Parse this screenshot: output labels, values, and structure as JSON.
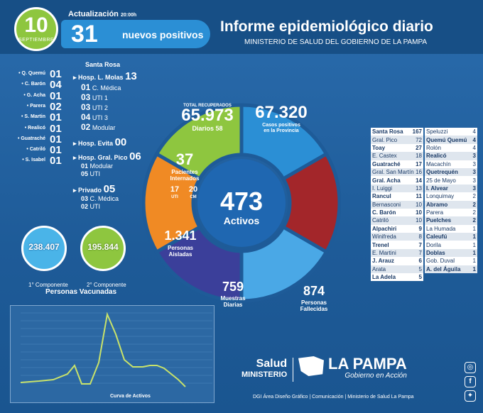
{
  "header": {
    "day": "10",
    "month": "SEPTIEMBRE",
    "update_label": "Actualización",
    "update_time": "20:00h",
    "new_positive_count": "31",
    "new_positive_label": "nuevos positivos",
    "title": "Informe epidemiológico diario",
    "subtitle": "MINISTERIO DE SALUD DEL GOBIERNO DE LA PAMPA"
  },
  "left_list": [
    {
      "name": "Q. Quemú",
      "value": "01"
    },
    {
      "name": "C. Barón",
      "value": "04"
    },
    {
      "name": "G. Acha",
      "value": "01"
    },
    {
      "name": "Parera",
      "value": "02"
    },
    {
      "name": "S. Martin",
      "value": "01"
    },
    {
      "name": "Realicó",
      "value": "01"
    },
    {
      "name": "Guatraché",
      "value": "01"
    },
    {
      "name": "Catriló",
      "value": "01"
    },
    {
      "name": "S. Isabel",
      "value": "01"
    }
  ],
  "hospitals": {
    "city": "Santa Rosa",
    "molas": {
      "label": "Hosp. L. Molas",
      "value": "13",
      "items": [
        {
          "n": "01",
          "t": "C. Médica"
        },
        {
          "n": "03",
          "t": "UTI 1"
        },
        {
          "n": "03",
          "t": "UTI 2"
        },
        {
          "n": "04",
          "t": "UTI 3"
        },
        {
          "n": "02",
          "t": "Modular"
        }
      ]
    },
    "evita": {
      "label": "Hosp. Evita",
      "value": "00"
    },
    "pico": {
      "label": "Hosp. Gral. Pico",
      "value": "06",
      "items": [
        {
          "n": "01",
          "t": "Modular"
        },
        {
          "n": "05",
          "t": "UTI"
        }
      ]
    },
    "privado": {
      "label": "Privado",
      "value": "05",
      "items": [
        {
          "n": "03",
          "t": "C. Médica"
        },
        {
          "n": "02",
          "t": "UTI"
        }
      ]
    }
  },
  "vaccines": {
    "first": "238.407",
    "first_label": "1° Componente",
    "second": "195.844",
    "second_label": "2° Componente",
    "caption": "Personas Vacunadas"
  },
  "wheel": {
    "recovered_label": "TOTAL RECUPERADOS",
    "recovered": "65.973",
    "recovered_daily_label": "Diarios",
    "recovered_daily": "58",
    "positives": "67.320",
    "positives_label": "Casos positivos en la Provincia",
    "hospitalized": "37",
    "hospitalized_label": "Pacientes Internados",
    "uti": "17",
    "uti_label": "UTI",
    "cm": "20",
    "cm_label": "CM",
    "active": "473",
    "active_label": "Activos",
    "isolated": "1.341",
    "isolated_label": "Personas Aisladas",
    "samples": "759",
    "samples_label": "Muestras Diarias",
    "deaths": "874",
    "deaths_label": "Personas Fallecidas",
    "colors": {
      "recovered": "#8ec63f",
      "positives": "#2b8fd5",
      "hospitalized": "#f08a24",
      "isolated": "#3b3f9a",
      "samples": "#4aa8e6",
      "deaths": "#a3262a",
      "center": "#1f67b1"
    }
  },
  "table_left": [
    {
      "name": "Santa Rosa",
      "value": "167",
      "bold": true
    },
    {
      "name": "Gral. Pico",
      "value": "72",
      "bold": false
    },
    {
      "name": "Toay",
      "value": "27",
      "bold": true
    },
    {
      "name": "E. Castex",
      "value": "18",
      "bold": false
    },
    {
      "name": "Guatraché",
      "value": "17",
      "bold": true
    },
    {
      "name": "Gral. San Martín",
      "value": "16",
      "bold": false
    },
    {
      "name": "Gral. Acha",
      "value": "14",
      "bold": true
    },
    {
      "name": "I. Luiggi",
      "value": "13",
      "bold": false
    },
    {
      "name": "Rancul",
      "value": "11",
      "bold": true
    },
    {
      "name": "Bernasconi",
      "value": "10",
      "bold": false
    },
    {
      "name": "C. Barón",
      "value": "10",
      "bold": true
    },
    {
      "name": "Catriló",
      "value": "10",
      "bold": false
    },
    {
      "name": "Alpachiri",
      "value": "9",
      "bold": true
    },
    {
      "name": "Winifreda",
      "value": "8",
      "bold": false
    },
    {
      "name": "Trenel",
      "value": "7",
      "bold": true
    },
    {
      "name": "E. Martini",
      "value": "7",
      "bold": false
    },
    {
      "name": "J. Arauz",
      "value": "6",
      "bold": true
    },
    {
      "name": "Arata",
      "value": "5",
      "bold": false
    },
    {
      "name": "La Adela",
      "value": "5",
      "bold": true
    }
  ],
  "table_right": [
    {
      "name": "Speluzzi",
      "value": "4",
      "bold": false
    },
    {
      "name": "Quemú Quemú",
      "value": "4",
      "bold": true
    },
    {
      "name": "Rolón",
      "value": "4",
      "bold": false
    },
    {
      "name": "Realicó",
      "value": "3",
      "bold": true
    },
    {
      "name": "Macachín",
      "value": "3",
      "bold": false
    },
    {
      "name": "Quetrequén",
      "value": "3",
      "bold": true
    },
    {
      "name": "25 de Mayo",
      "value": "3",
      "bold": false
    },
    {
      "name": "I. Alvear",
      "value": "3",
      "bold": true
    },
    {
      "name": "Lonquimay",
      "value": "2",
      "bold": false
    },
    {
      "name": "Abramo",
      "value": "2",
      "bold": true
    },
    {
      "name": "Parera",
      "value": "2",
      "bold": false
    },
    {
      "name": "Puelches",
      "value": "2",
      "bold": true
    },
    {
      "name": "La Humada",
      "value": "1",
      "bold": false
    },
    {
      "name": "Caleufú",
      "value": "1",
      "bold": true
    },
    {
      "name": "Dorila",
      "value": "1",
      "bold": false
    },
    {
      "name": "Doblas",
      "value": "1",
      "bold": true
    },
    {
      "name": "Gob. Duval",
      "value": "1",
      "bold": false
    },
    {
      "name": "A. del Águila",
      "value": "1",
      "bold": true
    }
  ],
  "chart": {
    "caption": "Curva de Activos"
  },
  "footer": {
    "salud": "Salud",
    "ministerio": "MINISTERIO",
    "la_pampa": "LA PAMPA",
    "gobierno": "Gobierno en Acción",
    "credits": "DGI Área Diseño Gráfico  | Comunicación | Ministerio de Salud La Pampa"
  }
}
